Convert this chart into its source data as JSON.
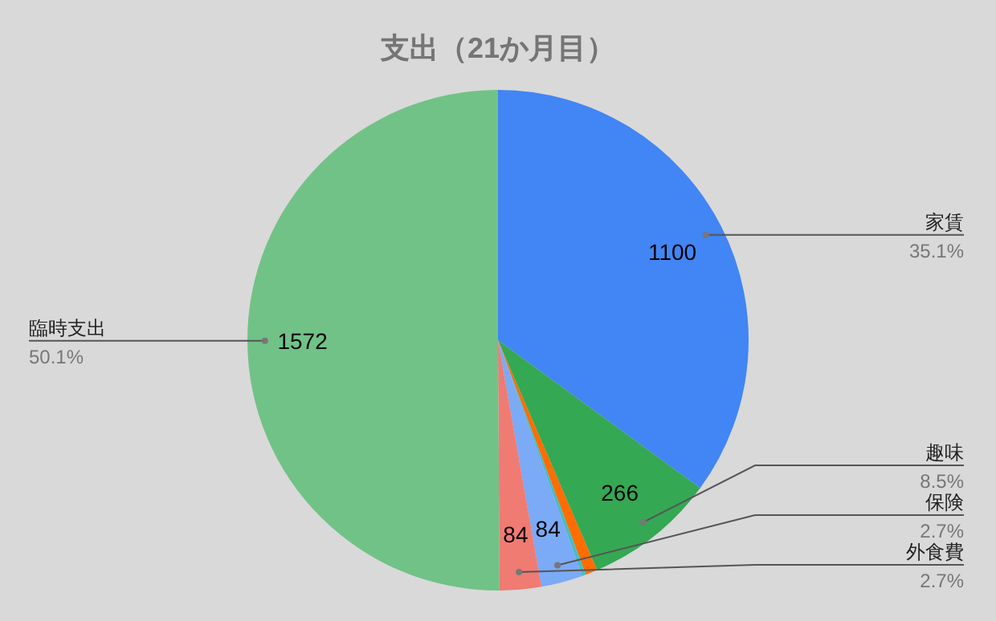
{
  "chart_data": {
    "type": "pie",
    "title": "支出（21か月目）",
    "categories": [
      "家賃",
      "趣味",
      null,
      null,
      "保険",
      "外食費",
      "臨時支出"
    ],
    "values": [
      1100,
      266,
      24,
      8,
      84,
      84,
      1572
    ],
    "value_labels": [
      "1100",
      "266",
      null,
      null,
      "84",
      "84",
      "1572"
    ],
    "colors": [
      "#4285f4",
      "#34a853",
      "#ff6d01",
      "#46bdc6",
      "#7baaf7",
      "#f07b72",
      "#71c287"
    ],
    "annotations": [
      "35.1%",
      "8.5%",
      "2.7%",
      "2.7%",
      "50.1%"
    ]
  }
}
